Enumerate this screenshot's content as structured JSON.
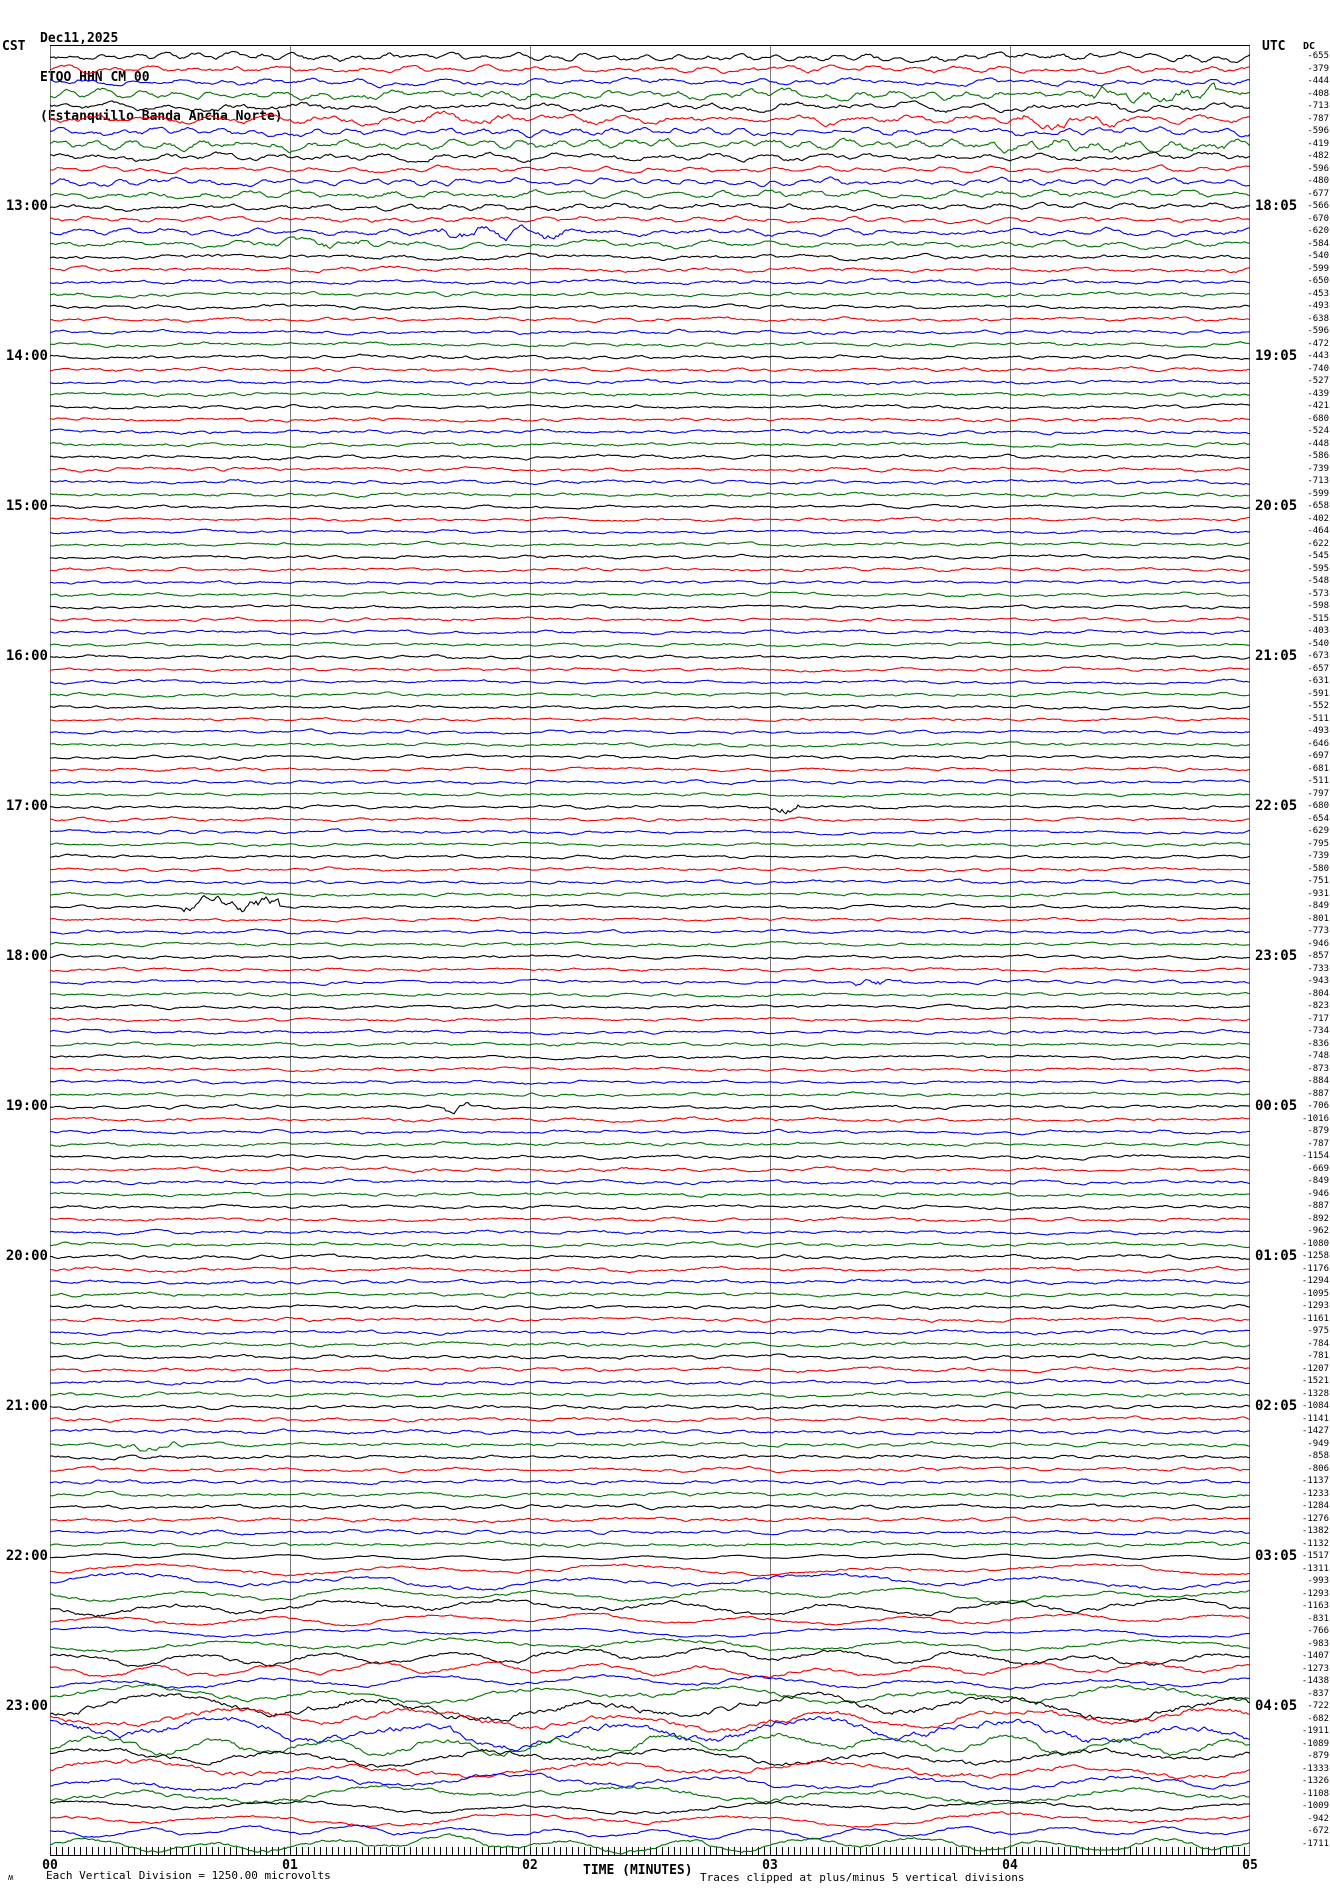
{
  "header": {
    "date": "Dec11,2025",
    "station": "ETQO HHN CM 00",
    "station_name": "(Estanquillo Banda Ancha Norte)"
  },
  "axes": {
    "left_label": "CST",
    "right_label": "UTC",
    "dc_label": "DC",
    "x_title": "TIME (MINUTES)",
    "x_ticks": [
      "00",
      "01",
      "02",
      "03",
      "04",
      "05"
    ],
    "left_times": [
      "13:00",
      "14:00",
      "15:00",
      "16:00",
      "17:00",
      "18:00",
      "19:00",
      "20:00",
      "21:00",
      "22:00",
      "23:00"
    ],
    "right_times": [
      "18:05",
      "19:05",
      "20:05",
      "21:05",
      "22:05",
      "23:05",
      "00:05",
      "01:05",
      "02:05",
      "03:05",
      "04:05"
    ],
    "first_label_row": 13,
    "label_row_step": 12
  },
  "footer": {
    "logo_glyph": "ʍ",
    "scale_note": "Each Vertical Division = 1250.00 microvolts",
    "clip_note": "Traces clipped at plus/minus 5 vertical divisions"
  },
  "chart_data": {
    "type": "line",
    "subtype": "helicorder",
    "minutes_per_line": 5,
    "lines": 144,
    "x_range_minutes": [
      0,
      5
    ],
    "grid": "vertical-minute-lines",
    "trace_colors": [
      "#000000",
      "#ee0000",
      "#0000ee",
      "#007300"
    ],
    "dc_offsets": [
      -655,
      -379,
      -444,
      -408,
      -713,
      -787,
      -596,
      -419,
      -482,
      -596,
      -480,
      -677,
      -566,
      -670,
      -620,
      -584,
      -540,
      -599,
      -650,
      -453,
      -493,
      -638,
      -596,
      -472,
      -443,
      -740,
      -527,
      -439,
      -421,
      -680,
      -524,
      -448,
      -586,
      -739,
      -713,
      -599,
      -658,
      -402,
      -464,
      -622,
      -545,
      -595,
      -548,
      -573,
      -598,
      -515,
      -403,
      -540,
      -673,
      -657,
      -631,
      -591,
      -552,
      -511,
      -493,
      -646,
      -697,
      -681,
      -511,
      -797,
      -680,
      -654,
      -629,
      -795,
      -739,
      -580,
      -751,
      -931,
      -849,
      -801,
      -773,
      -946,
      -857,
      -733,
      -943,
      -804,
      -823,
      -717,
      -734,
      -836,
      -748,
      -873,
      -884,
      -887,
      -706,
      -1016,
      -879,
      -787,
      -1154,
      -669,
      -849,
      -946,
      -887,
      -892,
      -962,
      -1080,
      -1258,
      -1176,
      -1294,
      -1095,
      -1293,
      -1161,
      -975,
      -784,
      -781,
      -1207,
      -1521,
      -1328,
      -1084,
      -1141,
      -1427,
      -949,
      -858,
      -806,
      -1137,
      -1233,
      -1284,
      -1276,
      -1382,
      -1132,
      -1517,
      -1311,
      -993,
      -1293,
      -1163,
      -831,
      -766,
      -983,
      -1407,
      -1273,
      -1438,
      -837,
      -722,
      -682,
      -1911,
      -1089,
      -879,
      -1333,
      -1326,
      -1108,
      -1009,
      -942,
      -672,
      -1711
    ],
    "row_amplitudes": [
      4,
      3.5,
      3.5,
      4.5,
      4.5,
      4.5,
      4,
      5,
      4,
      3,
      3.5,
      4,
      3.5,
      3,
      3.5,
      3.5,
      3,
      3,
      2.8,
      2.6,
      2.5,
      2.5,
      2.5,
      2.5,
      2.5,
      2.5,
      2.5,
      2.5,
      2.5,
      2.5,
      2.5,
      2.5,
      2.5,
      2.5,
      2.5,
      2.5,
      2.2,
      2.2,
      2.2,
      2.2,
      2.2,
      2.2,
      2.2,
      2.2,
      2.2,
      2.2,
      2.2,
      2.2,
      2.2,
      2.2,
      2.2,
      2.2,
      2.2,
      2.2,
      2.2,
      2.2,
      2.2,
      2.2,
      2.2,
      2.2,
      2.2,
      2.2,
      2.2,
      2.2,
      2.2,
      2.2,
      2.2,
      2.2,
      2.2,
      2.2,
      2.2,
      2.2,
      2.2,
      2.2,
      2.2,
      2.2,
      2.2,
      2.2,
      2.2,
      2.2,
      2.2,
      2.2,
      2.2,
      2.2,
      2.4,
      2.4,
      2.4,
      2.4,
      2.4,
      2.4,
      2.4,
      2.4,
      2.4,
      2.4,
      2.4,
      2.4,
      2.6,
      2.6,
      2.6,
      2.6,
      2.6,
      2.6,
      2.6,
      2.6,
      2.6,
      2.6,
      2.6,
      2.6,
      2.6,
      2.6,
      2.6,
      2.6,
      2.6,
      2.6,
      2.6,
      2.6,
      2.6,
      2.6,
      2.6,
      2.6,
      3,
      6,
      8,
      7,
      9,
      6,
      5,
      7,
      9,
      8,
      7,
      9,
      14,
      12,
      15,
      12,
      10,
      10,
      9,
      9,
      7,
      7,
      6,
      8
    ],
    "bursts": [
      {
        "row": 4,
        "x0": 4.35,
        "x1": 4.85,
        "amp": 9
      },
      {
        "row": 6,
        "x0": 1.5,
        "x1": 2.0,
        "amp": 6
      },
      {
        "row": 6,
        "x0": 4.05,
        "x1": 4.45,
        "amp": 8
      },
      {
        "row": 8,
        "x0": 3.9,
        "x1": 4.9,
        "amp": 7
      },
      {
        "row": 15,
        "x0": 1.6,
        "x1": 2.15,
        "amp": 8
      },
      {
        "row": 16,
        "x0": 0.85,
        "x1": 1.5,
        "amp": 6
      },
      {
        "row": 61,
        "x0": 3.0,
        "x1": 3.12,
        "amp": 9
      },
      {
        "row": 69,
        "x0": 0.55,
        "x1": 0.95,
        "amp": 11
      },
      {
        "row": 75,
        "x0": 3.35,
        "x1": 3.55,
        "amp": 7
      },
      {
        "row": 85,
        "x0": 1.65,
        "x1": 1.75,
        "amp": 7
      },
      {
        "row": 112,
        "x0": 0.3,
        "x1": 0.55,
        "amp": 7
      }
    ]
  }
}
